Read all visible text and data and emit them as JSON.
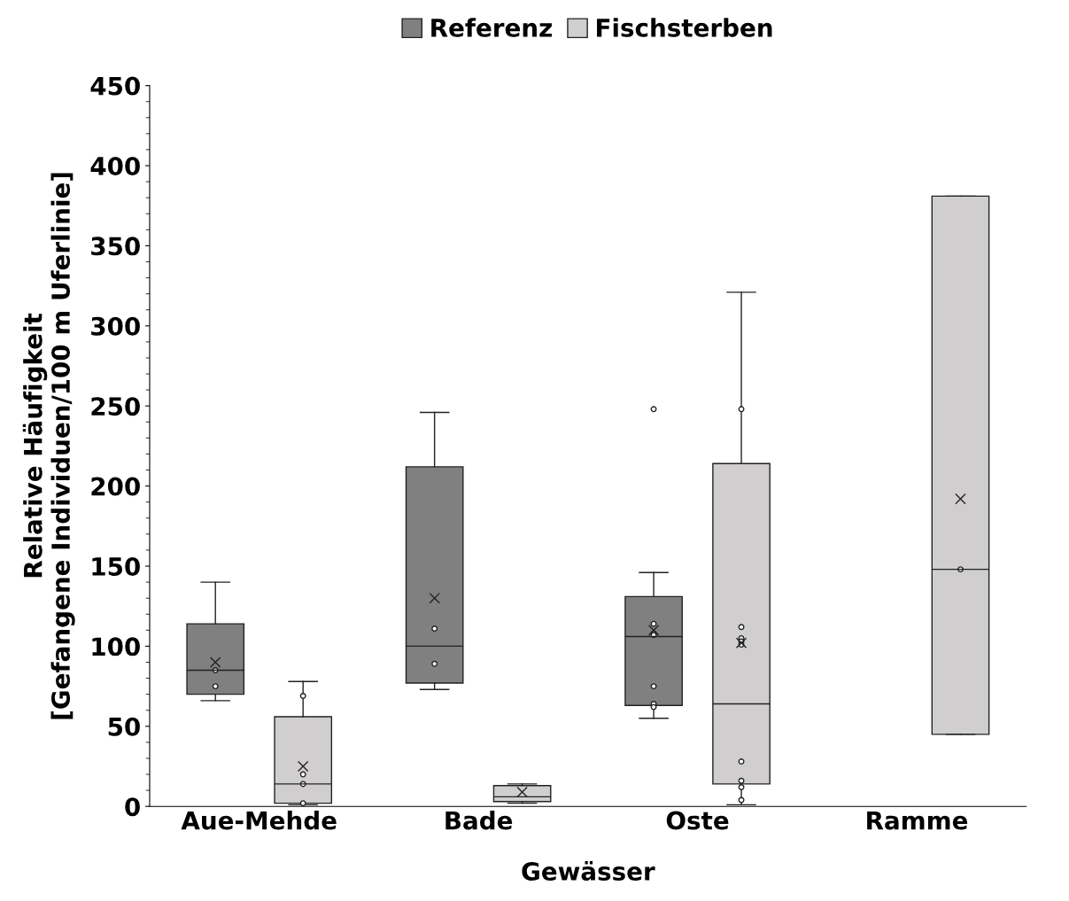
{
  "chart_data": {
    "type": "box",
    "xlabel": "Gewässer",
    "ylabel": "Relative Häufigkeit\n[Gefangene Individuen/100 m Uferlinie]",
    "categories": [
      "Aue-Mehde",
      "Bade",
      "Oste",
      "Ramme"
    ],
    "ylim": [
      0,
      450
    ],
    "yticks": [
      0,
      50,
      100,
      150,
      200,
      250,
      300,
      350,
      400,
      450
    ],
    "grid": false,
    "legend": "top",
    "marker": "circle",
    "series": [
      {
        "name": "Referenz",
        "color": "#808080",
        "boxes": [
          {
            "low": 66,
            "q1": 70,
            "median": 85,
            "q3": 114,
            "high": 140,
            "mean": 90,
            "outliers": [
              85,
              75
            ]
          },
          {
            "low": 73,
            "q1": 77,
            "median": 100,
            "q3": 212,
            "high": 246,
            "mean": 130,
            "outliers": [
              111,
              89
            ]
          },
          {
            "low": 55,
            "q1": 63,
            "median": 106,
            "q3": 131,
            "high": 146,
            "mean": 110,
            "outliers": [
              248,
              114,
              108,
              107,
              75,
              64,
              62
            ]
          },
          null
        ]
      },
      {
        "name": "Fischsterben",
        "color": "#d0cecf",
        "boxes": [
          {
            "low": 1,
            "q1": 2,
            "median": 14,
            "q3": 56,
            "high": 78,
            "mean": 25,
            "outliers": [
              69,
              20,
              14,
              2
            ]
          },
          {
            "low": 2,
            "q1": 3,
            "median": 6,
            "q3": 13,
            "high": 14,
            "mean": 9
          },
          {
            "low": 1,
            "q1": 14,
            "median": 64,
            "q3": 214,
            "high": 321,
            "mean": 102,
            "outliers": [
              248,
              112,
              105,
              103,
              101,
              28,
              16,
              12,
              4
            ]
          },
          {
            "low": 45,
            "q1": 45,
            "median": 148,
            "q3": 381,
            "high": 381,
            "mean": 192,
            "outliers": [
              148
            ]
          }
        ]
      }
    ]
  }
}
